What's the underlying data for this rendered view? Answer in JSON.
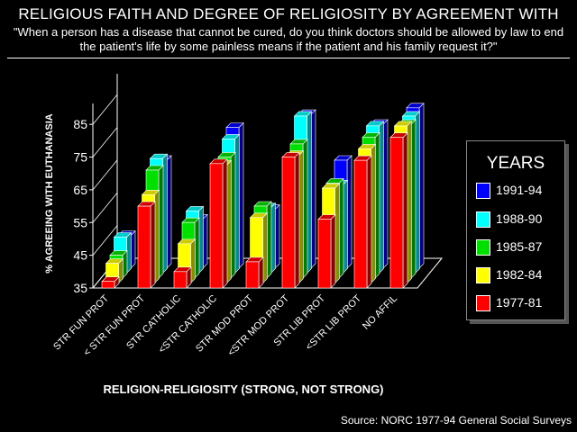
{
  "title": "RELIGIOUS FAITH AND DEGREE OF RELIGIOSITY BY AGREEMENT WITH",
  "subtitle": "\"When a person has a disease that cannot be cured, do you think doctors should be allowed by law to end the patient's life by some painless means if the patient and his family request it?\"",
  "source": "Source: NORC 1977-94 General Social Surveys",
  "legend_title": "YEARS",
  "chart_data": {
    "type": "bar",
    "xlabel": "RELIGION-RELIGIOSITY (STRONG, NOT STRONG)",
    "ylabel": "% AGREEING WITH EUTHANASIA",
    "yticks": [
      35,
      45,
      55,
      65,
      75,
      85
    ],
    "ylim": [
      35,
      90
    ],
    "categories": [
      "STR FUN PROT",
      "< STR FUN PROT",
      "STR CATHOLIC",
      "<STR CATHOLIC",
      "STR MOD PROT",
      "<STR MOD PROT",
      "STR LIB PROT",
      "<STR LIB PROT",
      "NO AFFIL"
    ],
    "series": [
      {
        "name": "1977-81",
        "color": "#ff0000",
        "values": [
          37,
          60,
          40,
          73,
          43,
          75,
          56,
          74,
          81
        ]
      },
      {
        "name": "1982-84",
        "color": "#ffff00",
        "values": [
          41,
          62,
          47,
          71,
          55,
          74,
          64,
          76,
          83
        ]
      },
      {
        "name": "1985-87",
        "color": "#00e000",
        "values": [
          42,
          68,
          52,
          72,
          57,
          76,
          64,
          78,
          82
        ]
      },
      {
        "name": "1988-90",
        "color": "#00ffff",
        "values": [
          46,
          70,
          54,
          76,
          55,
          83,
          62,
          80,
          83
        ]
      },
      {
        "name": "1991-94",
        "color": "#0000ff",
        "values": [
          45,
          68,
          50,
          78,
          53,
          82,
          68,
          79,
          84
        ]
      }
    ],
    "grid": false,
    "legend_position": "right"
  }
}
